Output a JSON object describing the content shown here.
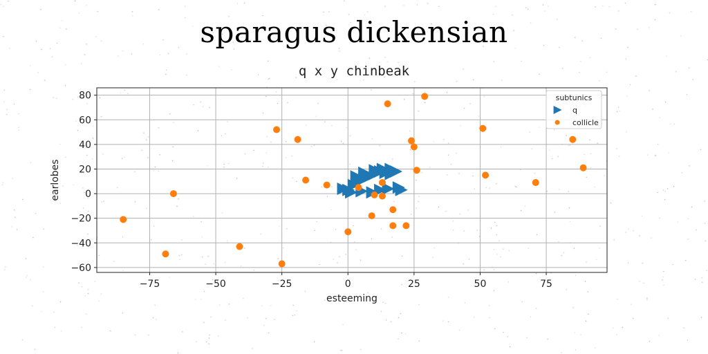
{
  "figure": {
    "suptitle": "sparagus dickensian",
    "title": "q x y chinbeak"
  },
  "colors": {
    "q": "#1f77b4",
    "collicle": "#ff7f0e",
    "grid": "#b0b0b0",
    "background": "#ffffff"
  },
  "chart_data": {
    "type": "scatter",
    "title": "q x y chinbeak",
    "xlabel": "esteeming",
    "ylabel": "earlobes",
    "xlim": [
      -95,
      98
    ],
    "ylim": [
      -64,
      86
    ],
    "xticks": [
      -75,
      -50,
      -25,
      0,
      25,
      50,
      75
    ],
    "xtick_labels": [
      "−75",
      "−50",
      "−25",
      "0",
      "25",
      "50",
      "75"
    ],
    "yticks": [
      -60,
      -40,
      -20,
      0,
      20,
      40,
      60,
      80
    ],
    "ytick_labels": [
      "−60",
      "−40",
      "−20",
      "0",
      "20",
      "40",
      "60",
      "80"
    ],
    "grid": true,
    "legend": {
      "title": "subtunics",
      "position": "top-right"
    },
    "series": [
      {
        "name": "q",
        "marker": "triangle-right",
        "x": [
          -2,
          0,
          2,
          4,
          6,
          8,
          10,
          12,
          14,
          16,
          3,
          6,
          10,
          13,
          16,
          18,
          20,
          1,
          5,
          9,
          12,
          15,
          19
        ],
        "y": [
          4,
          3,
          7,
          10,
          12,
          14,
          16,
          18,
          17,
          16,
          14,
          17,
          19,
          20,
          20,
          18,
          3,
          1,
          2,
          1,
          3,
          4,
          5
        ]
      },
      {
        "name": "collicle",
        "marker": "circle",
        "x": [
          -85,
          -69,
          -66,
          -41,
          -27,
          -25,
          -19,
          -16,
          -8,
          0,
          4,
          9,
          10,
          13,
          13,
          15,
          17,
          17,
          22,
          24,
          25,
          26,
          29,
          51,
          52,
          71,
          85,
          89
        ],
        "y": [
          -21,
          -49,
          0,
          -43,
          52,
          -57,
          44,
          11,
          7,
          -31,
          5,
          -18,
          -1,
          9,
          -2,
          73,
          -13,
          -26,
          -26,
          43,
          38,
          19,
          79,
          53,
          15,
          9,
          44,
          21
        ]
      }
    ]
  }
}
